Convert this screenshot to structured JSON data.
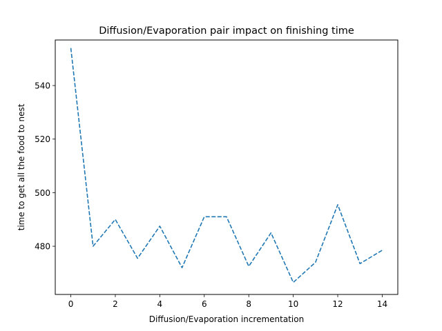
{
  "chart_data": {
    "type": "line",
    "title": "Diffusion/Evaporation pair impact on finishing time",
    "xlabel": "Diffusion/Evaporation incrementation",
    "ylabel": "time to get all the food to nest",
    "xlim": [
      -0.7,
      14.7
    ],
    "ylim": [
      462,
      557
    ],
    "xticks": [
      0,
      2,
      4,
      6,
      8,
      10,
      12,
      14
    ],
    "yticks": [
      480,
      500,
      520,
      540
    ],
    "grid": false,
    "series": [
      {
        "color": "#1f77b4",
        "linestyle": "dashed",
        "x": [
          0,
          1,
          2,
          3,
          4,
          5,
          6,
          7,
          8,
          9,
          10,
          11,
          12,
          13,
          14
        ],
        "y": [
          554,
          480,
          490,
          475.5,
          487.5,
          472,
          491,
          491,
          472.5,
          485,
          466.5,
          474,
          495.5,
          473.5,
          478.5
        ]
      }
    ]
  }
}
